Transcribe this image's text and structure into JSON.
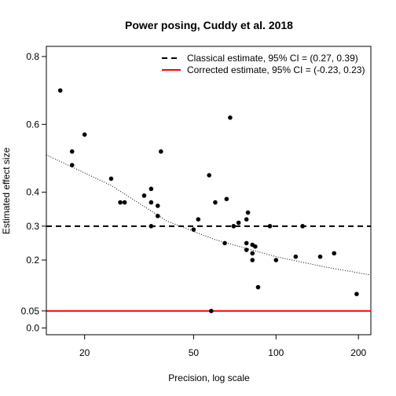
{
  "chart_data": {
    "type": "scatter",
    "title": "Power posing, Cuddy et al. 2018",
    "xlabel": "Precision, log scale",
    "ylabel": "Estimated effect size",
    "x_scale": "log",
    "xlim": [
      14.5,
      222
    ],
    "ylim": [
      -0.02,
      0.83
    ],
    "x_ticks": [
      20,
      50,
      100,
      200
    ],
    "x_tick_labels": [
      "20",
      "50",
      "100",
      "200"
    ],
    "y_ticks": [
      0.0,
      0.05,
      0.2,
      0.3,
      0.4,
      0.6,
      0.8
    ],
    "y_tick_labels": [
      "0.0",
      "0.05",
      "0.2",
      "0.3",
      "0.4",
      "0.6",
      "0.8"
    ],
    "grid": false,
    "legend_position": "top-right",
    "legend": [
      {
        "label": "Classical estimate, 95% CI = (0.27, 0.39)",
        "style": "dashed",
        "color": "#000000"
      },
      {
        "label": "Corrected estimate, 95% CI = (-0.23, 0.23)",
        "style": "solid",
        "color": "#ff0000"
      }
    ],
    "reference_lines": [
      {
        "y": 0.3,
        "style": "dashed",
        "color": "#000000"
      },
      {
        "y": 0.05,
        "style": "solid",
        "color": "#ff0000"
      }
    ],
    "trend_curve": {
      "style": "dotted",
      "points": [
        [
          14.5,
          0.51
        ],
        [
          25,
          0.42
        ],
        [
          40,
          0.315
        ],
        [
          60,
          0.26
        ],
        [
          100,
          0.21
        ],
        [
          150,
          0.18
        ],
        [
          222,
          0.156
        ]
      ]
    },
    "points": [
      {
        "x": 16.3,
        "y": 0.7
      },
      {
        "x": 18.0,
        "y": 0.52
      },
      {
        "x": 18.0,
        "y": 0.48
      },
      {
        "x": 20.0,
        "y": 0.57
      },
      {
        "x": 25.0,
        "y": 0.44
      },
      {
        "x": 27.0,
        "y": 0.37
      },
      {
        "x": 28.0,
        "y": 0.37
      },
      {
        "x": 33.0,
        "y": 0.39
      },
      {
        "x": 35.0,
        "y": 0.41
      },
      {
        "x": 35.0,
        "y": 0.37
      },
      {
        "x": 35.0,
        "y": 0.3
      },
      {
        "x": 37.0,
        "y": 0.36
      },
      {
        "x": 37.0,
        "y": 0.33
      },
      {
        "x": 38.0,
        "y": 0.52
      },
      {
        "x": 50.0,
        "y": 0.29
      },
      {
        "x": 52.0,
        "y": 0.32
      },
      {
        "x": 57.0,
        "y": 0.45
      },
      {
        "x": 58.0,
        "y": 0.05
      },
      {
        "x": 60.0,
        "y": 0.37
      },
      {
        "x": 65.0,
        "y": 0.25
      },
      {
        "x": 66.0,
        "y": 0.38
      },
      {
        "x": 68.0,
        "y": 0.62
      },
      {
        "x": 70.0,
        "y": 0.3
      },
      {
        "x": 73.0,
        "y": 0.31
      },
      {
        "x": 78.0,
        "y": 0.25
      },
      {
        "x": 78.0,
        "y": 0.23
      },
      {
        "x": 78.0,
        "y": 0.32
      },
      {
        "x": 79.0,
        "y": 0.34
      },
      {
        "x": 82.0,
        "y": 0.245
      },
      {
        "x": 82.0,
        "y": 0.22
      },
      {
        "x": 82.0,
        "y": 0.2
      },
      {
        "x": 84.0,
        "y": 0.24
      },
      {
        "x": 86.0,
        "y": 0.12
      },
      {
        "x": 95.0,
        "y": 0.3
      },
      {
        "x": 100.0,
        "y": 0.2
      },
      {
        "x": 118.0,
        "y": 0.21
      },
      {
        "x": 125.0,
        "y": 0.3
      },
      {
        "x": 145.0,
        "y": 0.21
      },
      {
        "x": 163.0,
        "y": 0.22
      },
      {
        "x": 197.0,
        "y": 0.1
      }
    ]
  }
}
